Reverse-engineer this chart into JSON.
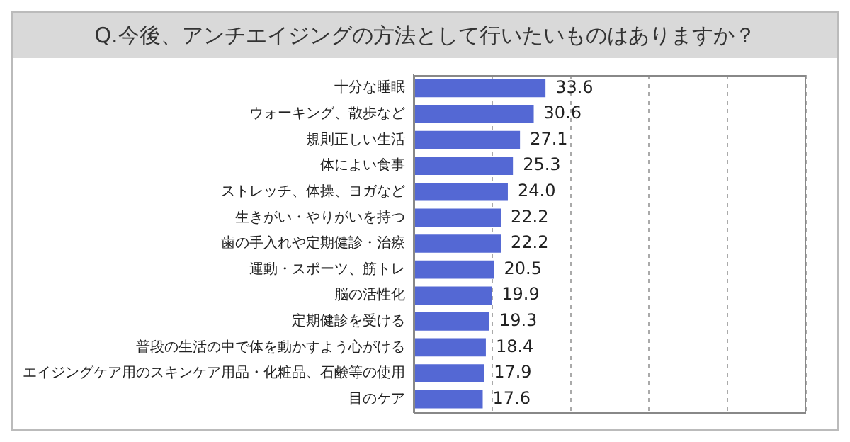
{
  "chart_data": {
    "type": "bar",
    "orientation": "horizontal",
    "title": "Q.今後、アンチエイジングの方法として行いたいものはありますか？",
    "categories": [
      "十分な睡眠",
      "ウォーキング、散歩など",
      "規則正しい生活",
      "体によい食事",
      "ストレッチ、体操、ヨガなど",
      "生きがい・やりがいを持つ",
      "歯の手入れや定期健診・治療",
      "運動・スポーツ、筋トレ",
      "脳の活性化",
      "定期健診を受ける",
      "普段の生活の中で体を動かすよう心がける",
      "エイジングケア用のスキンケア用品・化粧品、石鹸等の使用",
      "目のケア"
    ],
    "values": [
      33.6,
      30.6,
      27.1,
      25.3,
      24.0,
      22.2,
      22.2,
      20.5,
      19.9,
      19.3,
      18.4,
      17.9,
      17.6
    ],
    "color": "#5468d4",
    "xlim": [
      0,
      100
    ],
    "xticks": [
      {
        "value": 0,
        "label": null
      },
      {
        "value": 20,
        "label": null
      },
      {
        "value": 40,
        "label": null
      },
      {
        "value": 60,
        "label": null
      },
      {
        "value": 80,
        "label": null
      },
      {
        "value": 100,
        "label": null
      }
    ],
    "value_labels": [
      "33.6",
      "30.6",
      "27.1",
      "25.3",
      "24.0",
      "22.2",
      "22.2",
      "20.5",
      "19.9",
      "19.3",
      "18.4",
      "17.9",
      "17.6"
    ],
    "tick_labels": "y",
    "grid": "x"
  }
}
